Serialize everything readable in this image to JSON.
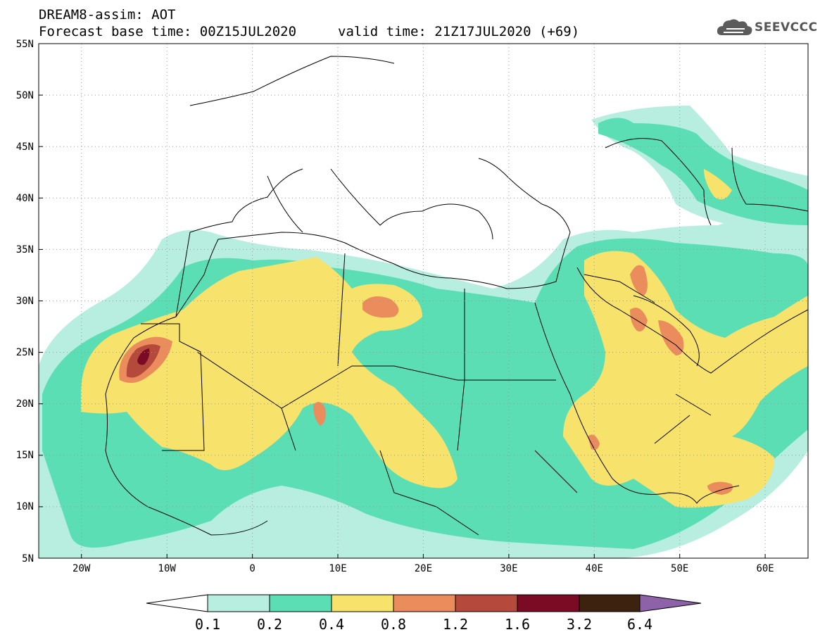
{
  "header": {
    "line1": "DREAM8-assim: AOT",
    "line2": "Forecast base time: 00Z15JUL2020",
    "line3": "valid time: 21Z17JUL2020 (+69)"
  },
  "logo": {
    "text": "SEEVCCC",
    "icon": "cloud-icon"
  },
  "map": {
    "lat_labels": [
      "55N",
      "50N",
      "45N",
      "40N",
      "35N",
      "30N",
      "25N",
      "20N",
      "15N",
      "10N",
      "5N"
    ],
    "lon_labels": [
      "20W",
      "10W",
      "0",
      "10E",
      "20E",
      "30E",
      "40E",
      "50E",
      "60E"
    ]
  },
  "colorbar": {
    "colors": [
      "#ffffff",
      "#b8eee0",
      "#5cdeb4",
      "#f7e26b",
      "#eb8c5c",
      "#b54a3c",
      "#7b0a25",
      "#3d2210",
      "#8e62a8"
    ],
    "ticks": [
      "0.1",
      "0.2",
      "0.4",
      "0.8",
      "1.2",
      "1.6",
      "3.2",
      "6.4"
    ]
  }
}
